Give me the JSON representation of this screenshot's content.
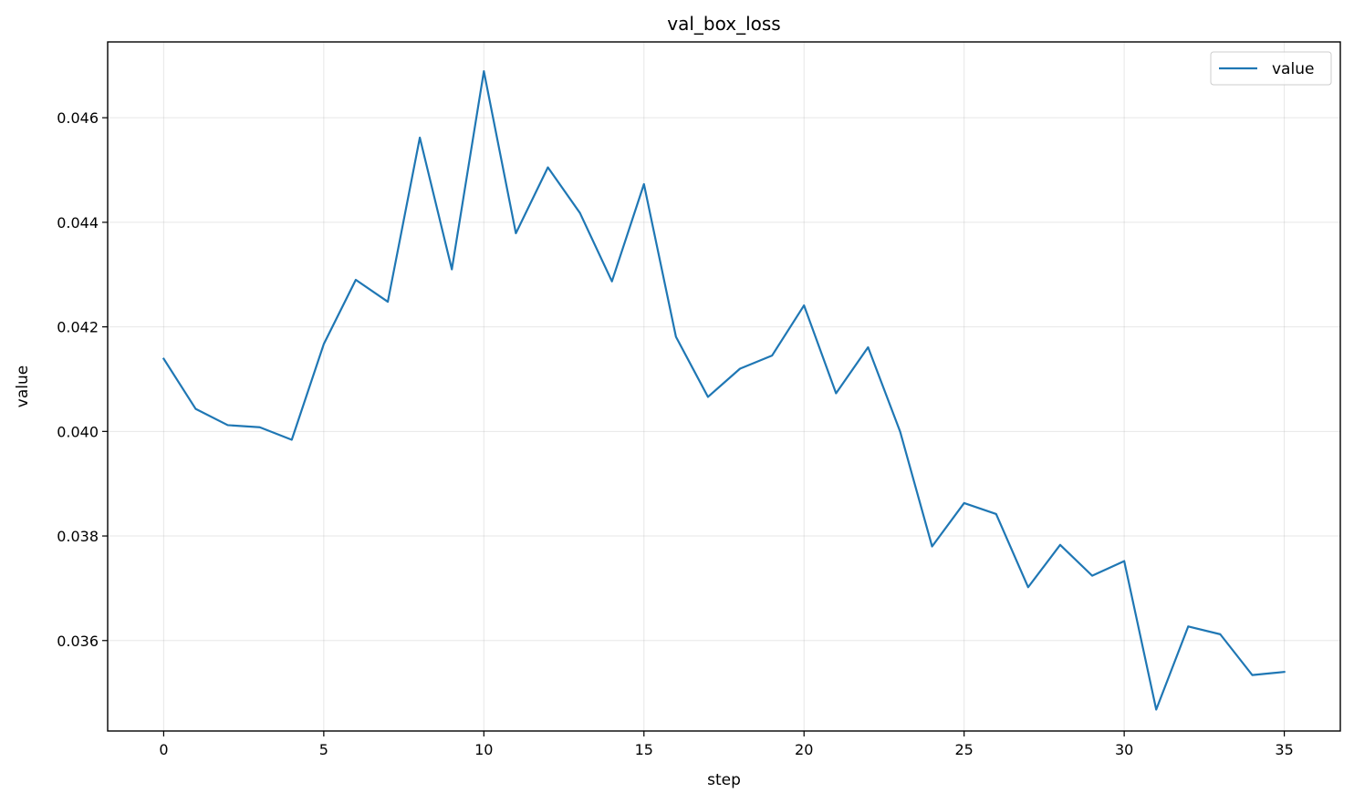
{
  "chart_data": {
    "type": "line",
    "title": "val_box_loss",
    "xlabel": "step",
    "ylabel": "value",
    "xlim": [
      -1.75,
      36.75
    ],
    "ylim": [
      0.03427,
      0.04745
    ],
    "grid": true,
    "legend_position": "top-right",
    "xticks": [
      0,
      5,
      10,
      15,
      20,
      25,
      30,
      35
    ],
    "yticks": [
      0.036,
      0.038,
      0.04,
      0.042,
      0.044,
      0.046
    ],
    "ytick_labels": [
      "0.036",
      "0.038",
      "0.040",
      "0.042",
      "0.044",
      "0.046"
    ],
    "series": [
      {
        "name": "value",
        "color": "#1f77b4",
        "x": [
          0,
          1,
          2,
          3,
          4,
          5,
          6,
          7,
          8,
          9,
          10,
          11,
          12,
          13,
          14,
          15,
          16,
          17,
          18,
          19,
          20,
          21,
          22,
          23,
          24,
          25,
          26,
          27,
          28,
          29,
          30,
          31,
          32,
          33,
          34,
          35
        ],
        "values": [
          0.04139,
          0.04043,
          0.04012,
          0.04008,
          0.03984,
          0.04167,
          0.0429,
          0.04248,
          0.04562,
          0.0431,
          0.04689,
          0.04379,
          0.04505,
          0.04418,
          0.04287,
          0.04473,
          0.04181,
          0.04066,
          0.0412,
          0.04145,
          0.04241,
          0.04073,
          0.04161,
          0.04,
          0.0378,
          0.03863,
          0.03842,
          0.03702,
          0.03783,
          0.03724,
          0.03752,
          0.03468,
          0.03627,
          0.03612,
          0.03534,
          0.0354
        ]
      }
    ]
  }
}
